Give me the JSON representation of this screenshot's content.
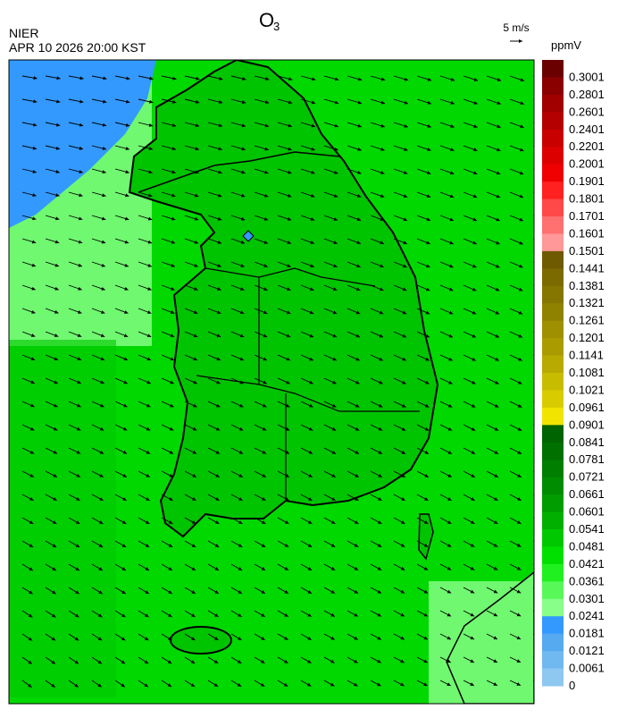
{
  "header": {
    "title": "O",
    "title_sub": "3",
    "agency": "NIER",
    "datetime": "APR 10 2026 20:00 KST"
  },
  "wind_scale": {
    "label": "5 m/s"
  },
  "colorbar": {
    "unit": "ppmV",
    "labels": [
      "0.3001",
      "0.2801",
      "0.2601",
      "0.2401",
      "0.2201",
      "0.2001",
      "0.1901",
      "0.1801",
      "0.1701",
      "0.1601",
      "0.1501",
      "0.1441",
      "0.1381",
      "0.1321",
      "0.1261",
      "0.1201",
      "0.1141",
      "0.1081",
      "0.1021",
      "0.0961",
      "0.0901",
      "0.0841",
      "0.0781",
      "0.0721",
      "0.0661",
      "0.0601",
      "0.0541",
      "0.0481",
      "0.0421",
      "0.0361",
      "0.0301",
      "0.0241",
      "0.0181",
      "0.0121",
      "0.0061",
      "0"
    ],
    "colors": [
      "#6b0000",
      "#8a0000",
      "#a00000",
      "#b40000",
      "#c80000",
      "#dc0000",
      "#f00000",
      "#ff2020",
      "#ff4848",
      "#ff7070",
      "#ff9898",
      "#6e5a00",
      "#7a6a00",
      "#847600",
      "#8f8200",
      "#9e9000",
      "#aa9c00",
      "#b8aa00",
      "#c8bc00",
      "#d8cc00",
      "#f0e400",
      "#006400",
      "#007000",
      "#007e00",
      "#008c00",
      "#009c00",
      "#00b000",
      "#00c800",
      "#00e000",
      "#20f020",
      "#58f858",
      "#88ff88",
      "#3399ff",
      "#55aaf0",
      "#70b8f0",
      "#8ec8f0"
    ]
  }
}
